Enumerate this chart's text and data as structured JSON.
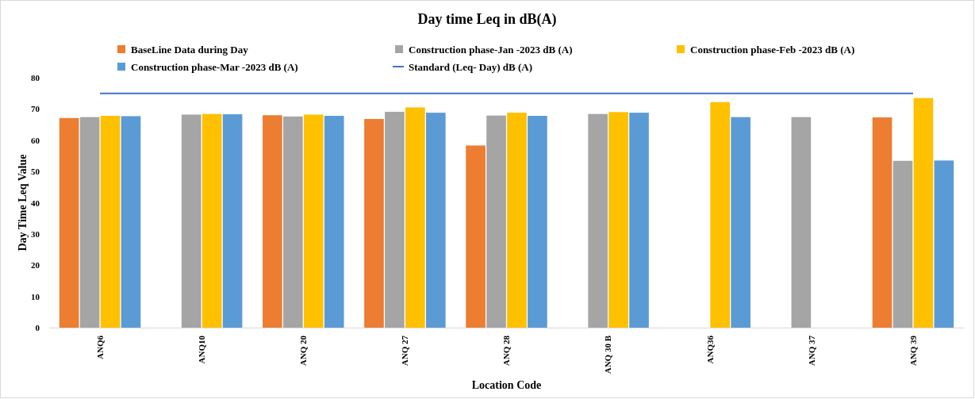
{
  "chart_data": {
    "type": "bar",
    "title": "Day time Leq in dB(A)",
    "xlabel": "Location Code",
    "ylabel": "Day Time Leq Value",
    "categories": [
      "ANQ6",
      "ANQ10",
      "ANQ 20",
      "ANQ 27",
      "ANQ 28",
      "ANQ 30 B",
      "ANQ36",
      "ANQ 37",
      "ANQ 39"
    ],
    "series": [
      {
        "name": "BaseLine Data during Day",
        "color": "#ed7d31",
        "values": [
          67.1,
          null,
          68.0,
          66.8,
          58.3,
          null,
          null,
          null,
          67.3
        ]
      },
      {
        "name": "Construction phase-Jan -2023 dB (A)",
        "color": "#a5a5a5",
        "values": [
          67.4,
          68.2,
          67.6,
          69.1,
          67.9,
          68.4,
          null,
          67.4,
          53.4
        ]
      },
      {
        "name": "Construction phase-Feb -2023 dB (A)",
        "color": "#ffc000",
        "values": [
          67.8,
          68.4,
          68.2,
          70.5,
          68.8,
          69.0,
          72.2,
          null,
          73.5
        ]
      },
      {
        "name": "Construction phase-Mar -2023 dB (A)",
        "color": "#5b9bd5",
        "values": [
          67.7,
          68.3,
          67.8,
          68.8,
          67.8,
          68.8,
          67.4,
          null,
          53.5
        ]
      },
      {
        "name": "Standard (Leq- Day) dB (A)",
        "type": "line",
        "color": "#4472c4",
        "values": [
          75,
          75,
          75,
          75,
          75,
          75,
          75,
          75,
          75
        ]
      }
    ],
    "ylim": [
      0,
      80
    ],
    "yticks": [
      0,
      10,
      20,
      30,
      40,
      50,
      60,
      70,
      80
    ],
    "grid": false,
    "legend": "top",
    "marker": "none",
    "line_style": "solid"
  }
}
